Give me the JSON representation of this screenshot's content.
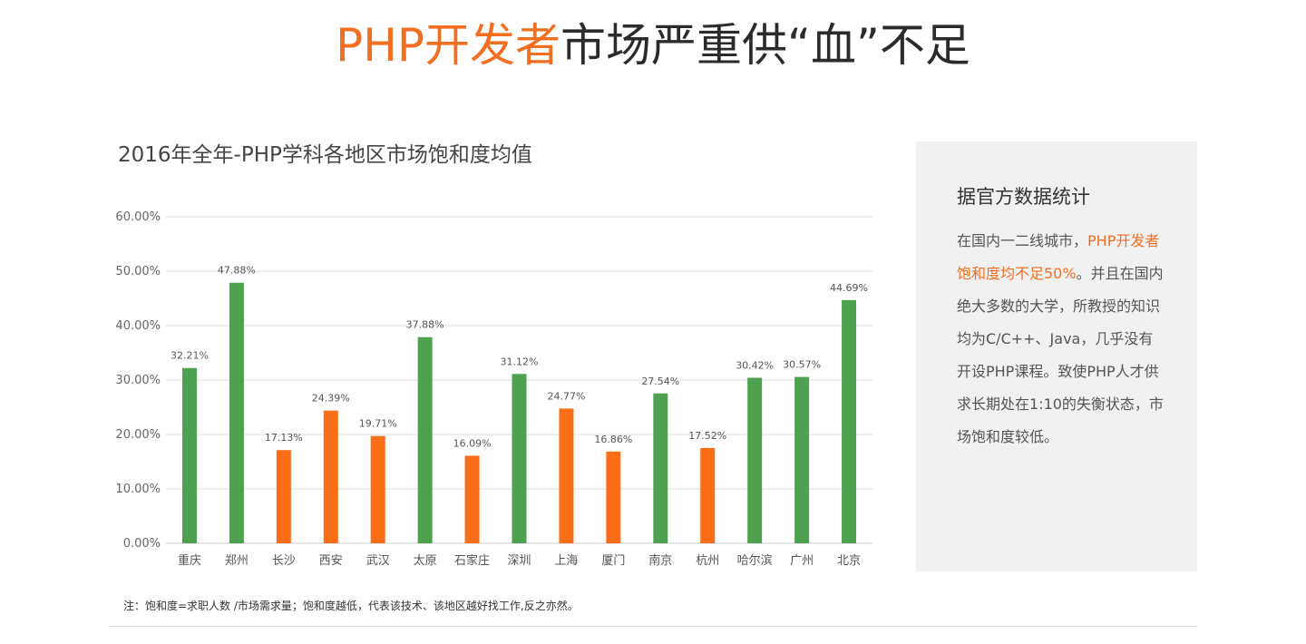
{
  "headline": {
    "accent": "PHP开发者",
    "rest": "市场严重供“血”不足"
  },
  "chart_data": {
    "type": "bar",
    "title": "2016年全年-PHP学科各地区市场饱和度均值",
    "xlabel": "",
    "ylabel": "",
    "ylim": [
      0,
      60
    ],
    "y_ticks": [
      "0.00%",
      "10.00%",
      "20.00%",
      "30.00%",
      "40.00%",
      "50.00%",
      "60.00%"
    ],
    "grid": true,
    "legend": "none",
    "categories": [
      "重庆",
      "郑州",
      "长沙",
      "西安",
      "武汉",
      "太原",
      "石家庄",
      "深圳",
      "上海",
      "厦门",
      "南京",
      "杭州",
      "哈尔滨",
      "广州",
      "北京"
    ],
    "values": [
      32.21,
      47.88,
      17.13,
      24.39,
      19.71,
      37.88,
      16.09,
      31.12,
      24.77,
      16.86,
      27.54,
      17.52,
      30.42,
      30.57,
      44.69
    ],
    "labels": [
      "32.21%",
      "47.88%",
      "17.13%",
      "24.39%",
      "19.71%",
      "37.88%",
      "16.09%",
      "31.12%",
      "24.77%",
      "16.86%",
      "27.54%",
      "17.52%",
      "30.42%",
      "30.57%",
      "44.69%"
    ],
    "bar_colors": [
      "#4ea24f",
      "#4ea24f",
      "#fb6e18",
      "#fb6e18",
      "#fb6e18",
      "#4ea24f",
      "#fb6e18",
      "#4ea24f",
      "#fb6e18",
      "#fb6e18",
      "#4ea24f",
      "#fb6e18",
      "#4ea24f",
      "#4ea24f",
      "#4ea24f"
    ]
  },
  "footnote": "注：饱和度=求职人数 /市场需求量；饱和度越低，代表该技术、该地区越好找工作,反之亦然。",
  "side_panel": {
    "title": "据官方数据统计",
    "body_lead": "在国内一二线城市，",
    "body_accent": "PHP开发者饱和度均不足50%",
    "body_rest": "。并且在国内绝大多数的大学，所教授的知识均为C/C++、Java，几乎没有开设PHP课程。致使PHP人才供求长期处在1:10的失衡状态，市场饱和度较低。"
  },
  "colors": {
    "accent": "#f26e20",
    "green_bar": "#4ea24f",
    "orange_bar": "#fb6e18",
    "panel_bg": "#f1f1f1"
  }
}
